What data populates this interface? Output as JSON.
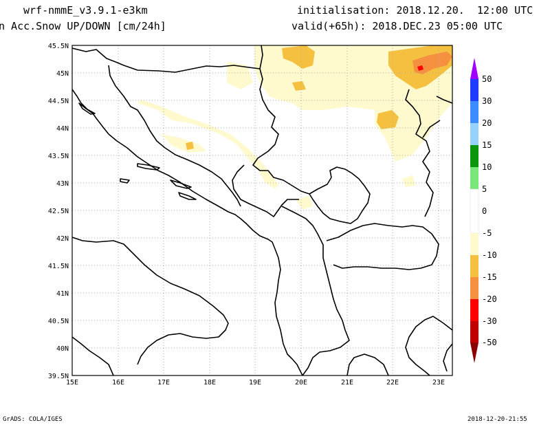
{
  "header": {
    "model": "wrf-nmmE_v3.9.1-e3km",
    "field": "n Acc.Snow UP/DOWN [cm/24h]",
    "init": "initialisation: 2018.12.20.  12:00 UTC",
    "valid": "valid(+65h): 2018.DEC.23 05:00 UTC"
  },
  "footer": {
    "software": "GrADS: COLA/IGES",
    "timestamp": "2018-12-20-21:55"
  },
  "map": {
    "lat_labels": [
      "45.5N",
      "45N",
      "44.5N",
      "44N",
      "43.5N",
      "43N",
      "42.5N",
      "42N",
      "41.5N",
      "41N",
      "40.5N",
      "40N",
      "39.5N"
    ],
    "lon_labels": [
      "15E",
      "16E",
      "17E",
      "18E",
      "19E",
      "20E",
      "21E",
      "22E",
      "23E"
    ],
    "lat_range": [
      39.5,
      45.5
    ],
    "lon_range": [
      15.0,
      23.3
    ],
    "grid": true
  },
  "legend": {
    "labels": [
      "50",
      "30",
      "20",
      "15",
      "10",
      "5",
      "0",
      "-5",
      "-10",
      "-15",
      "-20",
      "-30",
      "-50"
    ],
    "colors": [
      "#1e3cff",
      "#3c8cff",
      "#96d2fa",
      "#0a960a",
      "#78e678",
      "#ffffff",
      "#ffffff",
      "#fffacd",
      "#f5c040",
      "#f59040",
      "#ff0000",
      "#c00000",
      "#a00000"
    ],
    "top_arrow_color": "#a000ff",
    "bottom_arrow_color": "#8b0000"
  },
  "colors": {
    "light_snow": "#fffacd",
    "moderate_snow": "#f5c040",
    "heavy_snow": "#f59040",
    "extreme_snow": "#ff0000",
    "coast": "#000000"
  }
}
